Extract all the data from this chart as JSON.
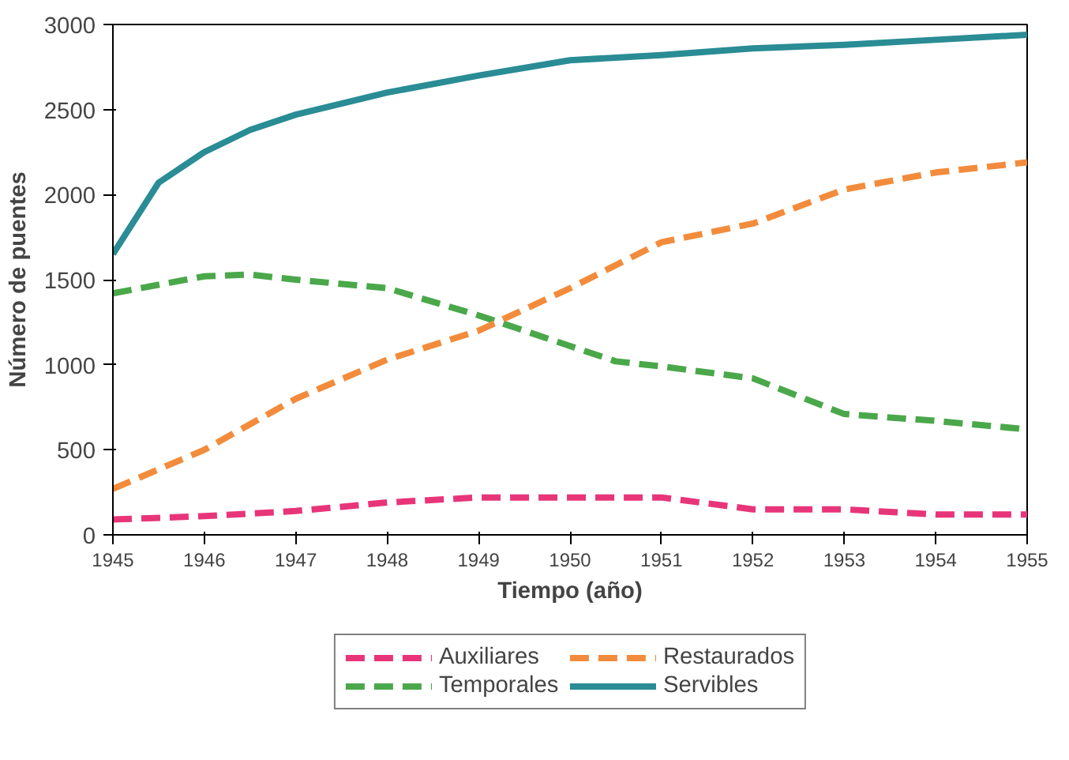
{
  "chart_data": {
    "type": "line",
    "xlabel": "Tiempo (año)",
    "ylabel": "Número de puentes",
    "xlim": [
      1945,
      1955
    ],
    "ylim": [
      0,
      3000
    ],
    "xticks": [
      1945,
      1946,
      1947,
      1948,
      1949,
      1950,
      1951,
      1952,
      1953,
      1954,
      1955
    ],
    "yticks": [
      0,
      500,
      1000,
      1500,
      2000,
      2500,
      3000
    ],
    "grid": false,
    "legend": "bottom",
    "marker": "none",
    "series": [
      {
        "name": "Auxiliares",
        "color": "#e8357a",
        "line_style": "dashed",
        "x": [
          1945,
          1946,
          1947,
          1948,
          1949,
          1950,
          1951,
          1952,
          1953,
          1954,
          1955
        ],
        "values": [
          90,
          110,
          140,
          190,
          220,
          220,
          220,
          150,
          150,
          120,
          120
        ]
      },
      {
        "name": "Temporales",
        "color": "#4aa84a",
        "line_style": "dashed",
        "x": [
          1945,
          1946,
          1946.5,
          1947,
          1948,
          1949,
          1950,
          1950.5,
          1951,
          1952,
          1953,
          1954,
          1955
        ],
        "values": [
          1420,
          1520,
          1530,
          1500,
          1450,
          1290,
          1110,
          1020,
          990,
          920,
          710,
          670,
          620
        ]
      },
      {
        "name": "Restaurados",
        "color": "#f28c3c",
        "line_style": "dashed",
        "x": [
          1945,
          1946,
          1947,
          1948,
          1949,
          1950,
          1951,
          1952,
          1953,
          1954,
          1955
        ],
        "values": [
          270,
          500,
          800,
          1030,
          1200,
          1450,
          1720,
          1830,
          2030,
          2130,
          2190
        ]
      },
      {
        "name": "Servibles",
        "color": "#2a8c94",
        "line_style": "solid",
        "x": [
          1945,
          1945.5,
          1946,
          1946.5,
          1947,
          1948,
          1949,
          1950,
          1951,
          1952,
          1953,
          1954,
          1955
        ],
        "values": [
          1650,
          2070,
          2250,
          2380,
          2470,
          2600,
          2700,
          2790,
          2820,
          2860,
          2880,
          2910,
          2940
        ]
      }
    ]
  }
}
